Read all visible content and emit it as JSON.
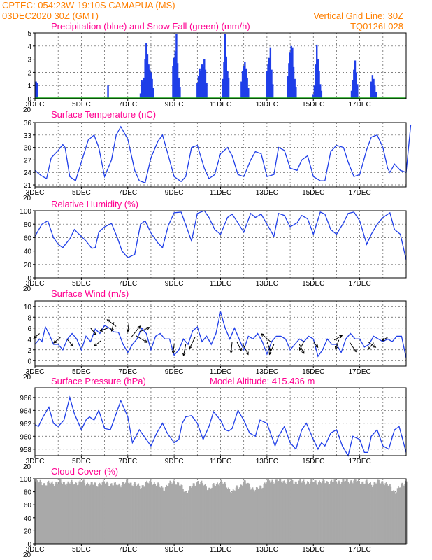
{
  "header": {
    "line1_left": "CPTEC:   054:23W-19:10S   CAMAPUA (MS)",
    "line2_left": "03DEC2020 30Z (GMT)",
    "line2_right": "Vertical Grid Line: 30Z",
    "line3_right": "TQ0126L028"
  },
  "colors": {
    "line": "#1f3ee8",
    "bars": "#1f3ee8",
    "snow": "#19a519",
    "cloud": "#a9a9a9",
    "title": "#ff0090",
    "header": "#ff7f00"
  },
  "x_axis": {
    "range": [
      0,
      16
    ],
    "grid_days": [
      0,
      1,
      2,
      3,
      4,
      5,
      6,
      7,
      8,
      9,
      10,
      11,
      12,
      13,
      14,
      15,
      16
    ],
    "tick_days": [
      0,
      2,
      4,
      6,
      8,
      10,
      12,
      14
    ],
    "tick_labels": [
      "3DEC",
      "5DEC",
      "7DEC",
      "9DEC",
      "11DEC",
      "13DEC",
      "15DEC",
      "17DEC"
    ],
    "year_fragment": "20"
  },
  "chart_data": [
    {
      "type": "bar",
      "title": "Precipitation (blue) and Snow Fall (green) (mm/h)",
      "ylim": [
        0,
        5
      ],
      "yticks": [
        0,
        1,
        2,
        3,
        4,
        5
      ],
      "series": [
        {
          "name": "Precipitation",
          "points": [
            [
              0.05,
              1.3
            ],
            [
              0.1,
              1.2
            ],
            [
              3.15,
              1.0
            ],
            [
              4.55,
              0.4
            ],
            [
              4.6,
              1.4
            ],
            [
              4.65,
              1.3
            ],
            [
              4.7,
              1.6
            ],
            [
              4.75,
              3.0
            ],
            [
              4.8,
              4.2
            ],
            [
              4.85,
              3.4
            ],
            [
              4.9,
              2.6
            ],
            [
              4.95,
              2.2
            ],
            [
              5.0,
              2.0
            ],
            [
              5.05,
              1.5
            ],
            [
              5.1,
              0.8
            ],
            [
              5.95,
              2.5
            ],
            [
              6.0,
              3.1
            ],
            [
              6.05,
              3.6
            ],
            [
              6.1,
              4.9
            ],
            [
              6.15,
              2.7
            ],
            [
              6.2,
              1.6
            ],
            [
              6.25,
              0.9
            ],
            [
              7.0,
              1.2
            ],
            [
              7.05,
              1.7
            ],
            [
              7.1,
              2.3
            ],
            [
              7.15,
              2.1
            ],
            [
              7.2,
              2.6
            ],
            [
              7.25,
              2.4
            ],
            [
              7.3,
              3.0
            ],
            [
              7.35,
              2.2
            ],
            [
              7.4,
              1.2
            ],
            [
              8.1,
              1.5
            ],
            [
              8.15,
              2.8
            ],
            [
              8.2,
              4.9
            ],
            [
              8.25,
              3.2
            ],
            [
              8.3,
              2.1
            ],
            [
              8.35,
              1.6
            ],
            [
              8.9,
              1.3
            ],
            [
              8.95,
              2.1
            ],
            [
              9.0,
              2.5
            ],
            [
              9.05,
              2.8
            ],
            [
              9.1,
              2.3
            ],
            [
              9.15,
              1.6
            ],
            [
              9.2,
              0.8
            ],
            [
              10.0,
              2.1
            ],
            [
              10.05,
              2.6
            ],
            [
              10.1,
              3.1
            ],
            [
              10.15,
              3.9
            ],
            [
              10.2,
              2.2
            ],
            [
              10.25,
              1.1
            ],
            [
              10.9,
              1.7
            ],
            [
              10.95,
              2.7
            ],
            [
              11.0,
              3.5
            ],
            [
              11.05,
              4.0
            ],
            [
              11.1,
              3.9
            ],
            [
              11.15,
              2.4
            ],
            [
              11.2,
              1.5
            ],
            [
              11.25,
              0.9
            ],
            [
              12.0,
              0.3
            ],
            [
              12.05,
              1.0
            ],
            [
              12.1,
              2.6
            ],
            [
              12.15,
              4.1
            ],
            [
              12.2,
              3.0
            ],
            [
              12.25,
              2.1
            ],
            [
              12.3,
              1.1
            ],
            [
              12.35,
              0.6
            ],
            [
              13.65,
              0.6
            ],
            [
              13.7,
              1.4
            ],
            [
              13.75,
              2.2
            ],
            [
              13.8,
              2.9
            ],
            [
              13.85,
              2.0
            ],
            [
              13.9,
              1.1
            ],
            [
              14.5,
              1.3
            ],
            [
              14.55,
              1.8
            ],
            [
              14.6,
              1.5
            ],
            [
              14.65,
              1.0
            ],
            [
              14.7,
              0.5
            ]
          ]
        },
        {
          "name": "Snow Fall",
          "points": []
        }
      ]
    },
    {
      "type": "line",
      "title": "Surface Temperature (nC)",
      "ylim": [
        20.5,
        36
      ],
      "yticks": [
        21,
        24,
        27,
        30,
        33,
        36
      ],
      "x": [
        0,
        0.25,
        0.5,
        0.7,
        1.0,
        1.2,
        1.3,
        1.5,
        1.75,
        2.0,
        2.3,
        2.55,
        2.75,
        3.0,
        3.3,
        3.5,
        3.7,
        4.0,
        4.3,
        4.5,
        4.75,
        5.0,
        5.3,
        5.5,
        5.7,
        6.0,
        6.3,
        6.5,
        6.75,
        7.0,
        7.3,
        7.5,
        7.75,
        8.0,
        8.3,
        8.5,
        8.75,
        9.0,
        9.3,
        9.5,
        9.75,
        10.0,
        10.3,
        10.5,
        10.75,
        11.0,
        11.3,
        11.5,
        11.75,
        12.0,
        12.3,
        12.5,
        12.75,
        13.0,
        13.3,
        13.5,
        13.75,
        14.0,
        14.3,
        14.5,
        14.75,
        15.0,
        15.2,
        15.3,
        15.5,
        15.75,
        16.0,
        16.2
      ],
      "y": [
        24.5,
        23.3,
        22.5,
        27.5,
        29.3,
        30.7,
        30.0,
        23.0,
        22.0,
        26.5,
        31.8,
        33.0,
        30.0,
        23.0,
        27.0,
        33.0,
        35.0,
        32.0,
        24.5,
        22.0,
        21.5,
        27.5,
        31.5,
        33.0,
        29.0,
        23.0,
        21.8,
        23.0,
        30.0,
        30.5,
        25.0,
        22.5,
        23.5,
        28.5,
        30.0,
        28.0,
        23.5,
        23.0,
        27.0,
        29.0,
        28.5,
        23.0,
        23.5,
        30.0,
        29.3,
        25.0,
        24.5,
        27.0,
        28.0,
        23.0,
        22.0,
        22.0,
        29.0,
        30.5,
        30.0,
        26.5,
        23.0,
        23.5,
        29.5,
        32.5,
        33.0,
        30.0,
        25.0,
        24.0,
        26.0,
        24.5,
        24.0,
        35.5
      ]
    },
    {
      "type": "line",
      "title": "Relative Humidity (%)",
      "ylim": [
        0,
        100
      ],
      "yticks": [
        0,
        20,
        40,
        60,
        80,
        100
      ],
      "x": [
        0,
        0.3,
        0.55,
        0.8,
        1.0,
        1.2,
        1.5,
        1.7,
        1.9,
        2.2,
        2.45,
        2.6,
        2.75,
        3.0,
        3.3,
        3.55,
        3.75,
        4.0,
        4.3,
        4.55,
        4.75,
        5.0,
        5.3,
        5.5,
        5.75,
        6.0,
        6.3,
        6.5,
        6.75,
        7.0,
        7.3,
        7.5,
        7.75,
        8.0,
        8.3,
        8.5,
        8.75,
        9.0,
        9.3,
        9.5,
        9.75,
        10.0,
        10.3,
        10.5,
        10.75,
        11.0,
        11.3,
        11.5,
        11.75,
        12.0,
        12.3,
        12.5,
        12.75,
        13.0,
        13.3,
        13.5,
        13.75,
        14.0,
        14.3,
        14.5,
        14.75,
        15.0,
        15.3,
        15.5,
        15.75,
        16.0
      ],
      "y": [
        62,
        80,
        85,
        60,
        50,
        45,
        58,
        72,
        65,
        55,
        44,
        45,
        68,
        76,
        81,
        60,
        40,
        30,
        35,
        80,
        85,
        67,
        52,
        45,
        78,
        97,
        98,
        79,
        55,
        96,
        100,
        90,
        72,
        65,
        90,
        95,
        82,
        68,
        96,
        90,
        95,
        80,
        62,
        96,
        93,
        76,
        82,
        93,
        88,
        65,
        98,
        95,
        72,
        65,
        82,
        96,
        98,
        85,
        50,
        65,
        80,
        90,
        97,
        72,
        65,
        27
      ]
    },
    {
      "type": "line",
      "title": "Surface Wind (m/s)",
      "ylim": [
        -1,
        11
      ],
      "yticks": [
        0,
        2,
        4,
        6,
        8,
        10
      ],
      "x": [
        0,
        0.2,
        0.3,
        0.45,
        0.6,
        0.8,
        1.0,
        1.2,
        1.4,
        1.6,
        1.8,
        2.0,
        2.2,
        2.4,
        2.6,
        2.8,
        3.0,
        3.2,
        3.4,
        3.6,
        3.8,
        4.0,
        4.2,
        4.4,
        4.6,
        4.8,
        5.0,
        5.2,
        5.4,
        5.6,
        5.8,
        6.0,
        6.2,
        6.4,
        6.6,
        6.8,
        7.0,
        7.2,
        7.4,
        7.6,
        7.8,
        8.0,
        8.2,
        8.4,
        8.6,
        8.8,
        9.0,
        9.2,
        9.4,
        9.6,
        9.8,
        10.0,
        10.2,
        10.4,
        10.6,
        10.8,
        11.0,
        11.2,
        11.4,
        11.6,
        11.8,
        12.0,
        12.2,
        12.4,
        12.6,
        12.8,
        13.0,
        13.2,
        13.4,
        13.6,
        13.8,
        14.0,
        14.2,
        14.4,
        14.6,
        14.8,
        15.0,
        15.2,
        15.4,
        15.6,
        15.8,
        16.0
      ],
      "y": [
        3.0,
        4.0,
        3.5,
        6.2,
        5.0,
        3.0,
        3.0,
        2.0,
        4.0,
        5.0,
        4.0,
        2.0,
        4.5,
        3.5,
        5.8,
        5.0,
        6.5,
        6.0,
        5.3,
        5.2,
        3.0,
        1.5,
        3.0,
        4.0,
        6.0,
        5.0,
        2.0,
        4.5,
        5.0,
        4.0,
        4.0,
        1.0,
        2.0,
        4.0,
        3.0,
        5.5,
        6.2,
        3.5,
        4.5,
        3.0,
        5.0,
        9.0,
        6.0,
        4.0,
        6.0,
        4.0,
        2.0,
        4.5,
        4.0,
        5.0,
        3.5,
        1.2,
        3.5,
        4.5,
        4.5,
        4.0,
        2.0,
        3.0,
        4.0,
        3.5,
        4.5,
        4.0,
        0.8,
        2.0,
        4.0,
        3.0,
        3.0,
        1.5,
        4.0,
        5.0,
        4.0,
        4.0,
        2.5,
        3.0,
        4.5,
        4.0,
        3.5,
        4.0,
        3.5,
        4.5,
        4.5,
        0.5
      ],
      "vectors": [
        [
          0.2,
          5.0,
          -5,
          4
        ],
        [
          1.1,
          4.3,
          -6,
          5
        ],
        [
          1.4,
          3.9,
          5,
          6
        ],
        [
          2.4,
          6.0,
          5,
          6
        ],
        [
          2.85,
          3.7,
          -6,
          5
        ],
        [
          3.2,
          6.1,
          -8,
          3
        ],
        [
          3.4,
          7.1,
          -2,
          8
        ],
        [
          3.5,
          6.3,
          -8,
          -6
        ],
        [
          4.05,
          7.0,
          -1,
          8
        ],
        [
          4.15,
          4.3,
          8,
          -10
        ],
        [
          4.35,
          4.6,
          10,
          6
        ],
        [
          4.5,
          5.3,
          9,
          -4
        ],
        [
          6.0,
          3.0,
          -1,
          8
        ],
        [
          6.5,
          3.0,
          -2,
          10
        ],
        [
          6.9,
          4.3,
          -5,
          10
        ],
        [
          8.5,
          3.5,
          -1,
          10
        ],
        [
          8.7,
          3.5,
          4,
          8
        ],
        [
          8.95,
          3.2,
          5,
          10
        ],
        [
          10.0,
          3.5,
          3,
          8
        ],
        [
          10.15,
          3.5,
          -8,
          -7
        ],
        [
          10.3,
          3.0,
          -4,
          9
        ],
        [
          11.4,
          3.0,
          4,
          8
        ],
        [
          11.6,
          3.6,
          -4,
          8
        ],
        [
          12.0,
          3.5,
          4,
          5
        ],
        [
          12.9,
          3.8,
          7,
          -4
        ],
        [
          13.1,
          3.8,
          -3,
          8
        ],
        [
          13.55,
          3.5,
          6,
          9
        ],
        [
          14.35,
          3.5,
          7,
          5
        ],
        [
          14.6,
          3.3,
          -5,
          6
        ],
        [
          15.2,
          4.3,
          -5,
          3
        ]
      ]
    },
    {
      "type": "line",
      "title": "Surface Pressure (hPa)",
      "annotation": "Model Altitude: 415.436 m",
      "ylim": [
        957,
        967.5
      ],
      "yticks": [
        958,
        960,
        962,
        964,
        966
      ],
      "x": [
        0,
        0.15,
        0.35,
        0.6,
        0.8,
        1.0,
        1.25,
        1.5,
        1.7,
        2.0,
        2.2,
        2.35,
        2.55,
        2.75,
        3.0,
        3.25,
        3.5,
        3.7,
        4.0,
        4.2,
        4.35,
        4.5,
        4.7,
        5.0,
        5.25,
        5.5,
        5.7,
        6.0,
        6.2,
        6.35,
        6.5,
        6.75,
        7.0,
        7.25,
        7.5,
        7.7,
        8.0,
        8.2,
        8.35,
        8.5,
        8.75,
        9.0,
        9.25,
        9.5,
        9.7,
        10.0,
        10.2,
        10.35,
        10.5,
        10.75,
        11.0,
        11.25,
        11.5,
        11.7,
        12.0,
        12.2,
        12.35,
        12.5,
        12.75,
        13.0,
        13.25,
        13.5,
        13.7,
        14.0,
        14.2,
        14.35,
        14.5,
        14.75,
        15.0,
        15.25,
        15.5,
        15.7,
        16.0
      ],
      "y": [
        961.8,
        961.5,
        963.0,
        964.5,
        962.0,
        961.5,
        962.5,
        966.0,
        963.5,
        961.0,
        962.5,
        963.0,
        962.5,
        964.0,
        961.2,
        961.0,
        963.5,
        965.5,
        963.0,
        959.0,
        960.0,
        961.0,
        960.0,
        958.5,
        960.5,
        962.0,
        960.5,
        959.0,
        959.5,
        962.0,
        963.0,
        963.2,
        962.0,
        959.5,
        961.5,
        963.8,
        962.5,
        961.0,
        960.8,
        961.2,
        964.0,
        962.5,
        960.5,
        960.0,
        962.5,
        962.0,
        960.0,
        958.5,
        960.0,
        961.5,
        959.0,
        958.0,
        961.0,
        962.0,
        959.5,
        958.0,
        959.0,
        958.5,
        960.5,
        961.0,
        958.5,
        957.0,
        960.0,
        959.5,
        957.5,
        957.5,
        960.0,
        961.0,
        958.5,
        958.0,
        961.0,
        961.5,
        957.5
      ]
    },
    {
      "type": "bar",
      "title": "Cloud Cover (%)",
      "ylim": [
        0,
        100
      ],
      "yticks": [
        0,
        20,
        40,
        60,
        80,
        100
      ],
      "x": [
        0,
        0.5,
        1.0,
        1.5,
        2.0,
        2.5,
        3.0,
        3.5,
        4.0,
        4.5,
        5.0,
        5.5,
        6.0,
        6.5,
        7.0,
        7.5,
        8.0,
        8.5,
        9.0,
        9.5,
        10.0,
        10.5,
        11.0,
        11.5,
        12.0,
        12.5,
        13.0,
        13.5,
        14.0,
        14.5,
        15.0,
        15.5,
        16.0
      ],
      "values": [
        96,
        92,
        95,
        93,
        95,
        91,
        94,
        90,
        95,
        88,
        96,
        85,
        97,
        80,
        96,
        85,
        96,
        80,
        95,
        82,
        96,
        97,
        96,
        95,
        96,
        95,
        96,
        97,
        96,
        92,
        96,
        80,
        97
      ]
    }
  ]
}
